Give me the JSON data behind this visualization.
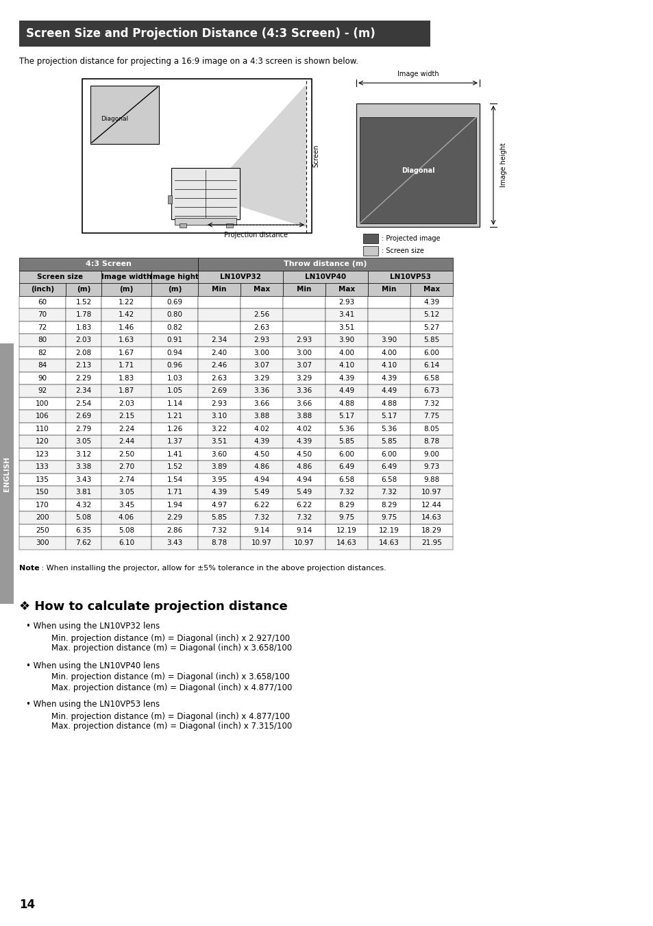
{
  "title": "Screen Size and Projection Distance (4:3 Screen) - (m)",
  "subtitle": "The projection distance for projecting a 16:9 image on a 4:3 screen is shown below.",
  "note_bold": "Note",
  "note_rest": " : When installing the projector, allow for ±5% tolerance in the above projection distances.",
  "section_title": "❖ How to calculate projection distance",
  "bullets": [
    {
      "header": "When using the LN10VP32 lens",
      "lines": [
        "Min. projection distance (m) = Diagonal (inch) x 2.927/100",
        "Max. projection distance (m) = Diagonal (inch) x 3.658/100"
      ]
    },
    {
      "header": "When using the LN10VP40 lens",
      "lines": [
        "Min. projection distance (m) = Diagonal (inch) x 3.658/100",
        "Max. projection distance (m) = Diagonal (inch) x 4.877/100"
      ]
    },
    {
      "header": "When using the LN10VP53 lens",
      "lines": [
        "Min. projection distance (m) = Diagonal (inch) x 4.877/100",
        "Max. projection distance (m) = Diagonal (inch) x 7.315/100"
      ]
    }
  ],
  "page_number": "14",
  "table_data": [
    [
      60,
      "1.52",
      "1.22",
      "0.69",
      "",
      "",
      "",
      "2.93",
      "",
      "4.39"
    ],
    [
      70,
      "1.78",
      "1.42",
      "0.80",
      "",
      "2.56",
      "",
      "3.41",
      "",
      "5.12"
    ],
    [
      72,
      "1.83",
      "1.46",
      "0.82",
      "",
      "2.63",
      "",
      "3.51",
      "",
      "5.27"
    ],
    [
      80,
      "2.03",
      "1.63",
      "0.91",
      "2.34",
      "2.93",
      "2.93",
      "3.90",
      "3.90",
      "5.85"
    ],
    [
      82,
      "2.08",
      "1.67",
      "0.94",
      "2.40",
      "3.00",
      "3.00",
      "4.00",
      "4.00",
      "6.00"
    ],
    [
      84,
      "2.13",
      "1.71",
      "0.96",
      "2.46",
      "3.07",
      "3.07",
      "4.10",
      "4.10",
      "6.14"
    ],
    [
      90,
      "2.29",
      "1.83",
      "1.03",
      "2.63",
      "3.29",
      "3.29",
      "4.39",
      "4.39",
      "6.58"
    ],
    [
      92,
      "2.34",
      "1.87",
      "1.05",
      "2.69",
      "3.36",
      "3.36",
      "4.49",
      "4.49",
      "6.73"
    ],
    [
      100,
      "2.54",
      "2.03",
      "1.14",
      "2.93",
      "3.66",
      "3.66",
      "4.88",
      "4.88",
      "7.32"
    ],
    [
      106,
      "2.69",
      "2.15",
      "1.21",
      "3.10",
      "3.88",
      "3.88",
      "5.17",
      "5.17",
      "7.75"
    ],
    [
      110,
      "2.79",
      "2.24",
      "1.26",
      "3.22",
      "4.02",
      "4.02",
      "5.36",
      "5.36",
      "8.05"
    ],
    [
      120,
      "3.05",
      "2.44",
      "1.37",
      "3.51",
      "4.39",
      "4.39",
      "5.85",
      "5.85",
      "8.78"
    ],
    [
      123,
      "3.12",
      "2.50",
      "1.41",
      "3.60",
      "4.50",
      "4.50",
      "6.00",
      "6.00",
      "9.00"
    ],
    [
      133,
      "3.38",
      "2.70",
      "1.52",
      "3.89",
      "4.86",
      "4.86",
      "6.49",
      "6.49",
      "9.73"
    ],
    [
      135,
      "3.43",
      "2.74",
      "1.54",
      "3.95",
      "4.94",
      "4.94",
      "6.58",
      "6.58",
      "9.88"
    ],
    [
      150,
      "3.81",
      "3.05",
      "1.71",
      "4.39",
      "5.49",
      "5.49",
      "7.32",
      "7.32",
      "10.97"
    ],
    [
      170,
      "4.32",
      "3.45",
      "1.94",
      "4.97",
      "6.22",
      "6.22",
      "8.29",
      "8.29",
      "12.44"
    ],
    [
      200,
      "5.08",
      "4.06",
      "2.29",
      "5.85",
      "7.32",
      "7.32",
      "9.75",
      "9.75",
      "14.63"
    ],
    [
      250,
      "6.35",
      "5.08",
      "2.86",
      "7.32",
      "9.14",
      "9.14",
      "12.19",
      "12.19",
      "18.29"
    ],
    [
      300,
      "7.62",
      "6.10",
      "3.43",
      "8.78",
      "10.97",
      "10.97",
      "14.63",
      "14.63",
      "21.95"
    ]
  ],
  "bg_color": "#ffffff",
  "title_bg": "#3a3a3a",
  "title_fg": "#ffffff",
  "header_bg": "#7a7a7a",
  "header_fg": "#ffffff",
  "subheader_bg": "#c8c8c8",
  "row_bg_even": "#ffffff",
  "row_bg_odd": "#f2f2f2",
  "sidebar_color": "#999999"
}
